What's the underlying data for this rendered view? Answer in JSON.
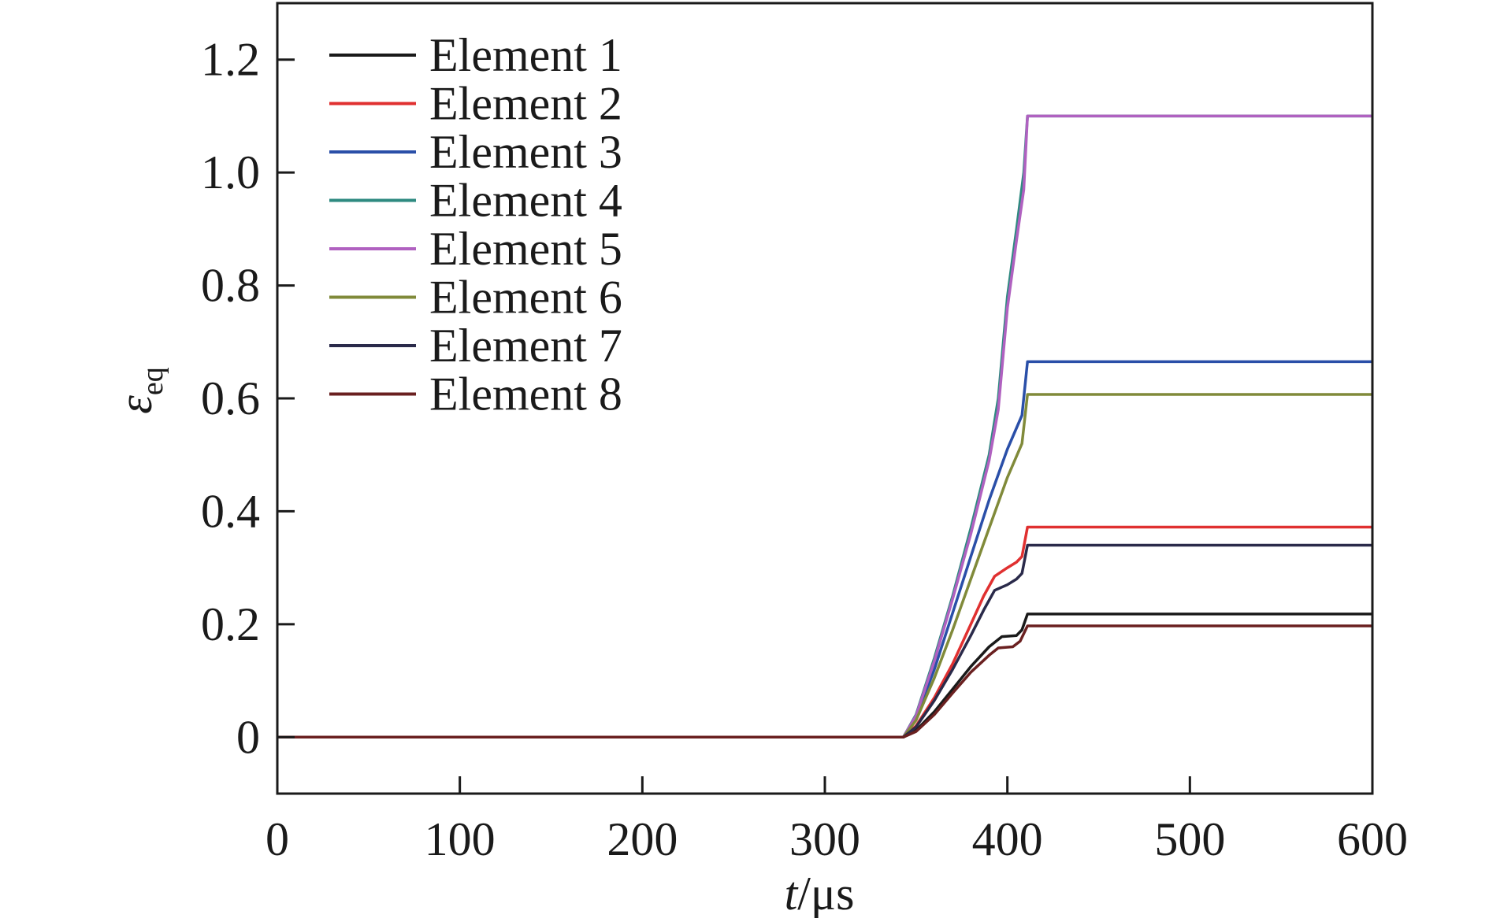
{
  "chart_data": {
    "type": "line",
    "xlabel": {
      "var": "t",
      "unit": "/μs"
    },
    "ylabel": {
      "var": "ε",
      "sub": "eq"
    },
    "xlim": [
      0,
      600
    ],
    "ylim": [
      -0.1,
      1.3
    ],
    "xticks": [
      0,
      100,
      200,
      300,
      400,
      500,
      600
    ],
    "xtick_labels": [
      "0",
      "100",
      "200",
      "300",
      "400",
      "500",
      "600"
    ],
    "yticks": [
      0,
      0.2,
      0.4,
      0.6,
      0.8,
      1.0,
      1.2
    ],
    "ytick_labels": [
      "0",
      "0.2",
      "0.4",
      "0.6",
      "0.8",
      "1.0",
      "1.2"
    ],
    "grid": false,
    "legend_position": "top-left",
    "series": [
      {
        "name": "Element 1",
        "color": "#1a1a1a",
        "x": [
          0,
          343,
          350,
          360,
          370,
          380,
          390,
          397,
          405,
          408,
          411,
          600
        ],
        "y": [
          0,
          0,
          0.012,
          0.045,
          0.085,
          0.125,
          0.16,
          0.178,
          0.18,
          0.19,
          0.218,
          0.218
        ]
      },
      {
        "name": "Element 2",
        "color": "#e03030",
        "x": [
          0,
          343,
          350,
          360,
          370,
          380,
          387,
          393,
          400,
          405,
          408,
          411,
          600
        ],
        "y": [
          0,
          0,
          0.02,
          0.07,
          0.13,
          0.2,
          0.25,
          0.285,
          0.3,
          0.31,
          0.32,
          0.372,
          0.372
        ]
      },
      {
        "name": "Element 3",
        "color": "#2a4fa8",
        "x": [
          0,
          343,
          350,
          360,
          370,
          380,
          390,
          400,
          408,
          411,
          600
        ],
        "y": [
          0,
          0,
          0.035,
          0.12,
          0.22,
          0.32,
          0.42,
          0.51,
          0.57,
          0.665,
          0.665
        ]
      },
      {
        "name": "Element 4",
        "color": "#2e8a80",
        "x": [
          0,
          343,
          350,
          360,
          370,
          380,
          390,
          395,
          400,
          405,
          409,
          411,
          600
        ],
        "y": [
          0,
          0,
          0.04,
          0.14,
          0.25,
          0.37,
          0.5,
          0.6,
          0.78,
          0.9,
          1.0,
          1.1,
          1.1
        ]
      },
      {
        "name": "Element 5",
        "color": "#b061c0",
        "x": [
          0,
          343,
          350,
          360,
          370,
          380,
          390,
          395,
          400,
          405,
          409,
          411,
          600
        ],
        "y": [
          0,
          0,
          0.038,
          0.135,
          0.245,
          0.36,
          0.49,
          0.58,
          0.76,
          0.88,
          0.97,
          1.1,
          1.1
        ]
      },
      {
        "name": "Element 6",
        "color": "#808a3a",
        "x": [
          0,
          343,
          350,
          360,
          370,
          380,
          390,
          400,
          408,
          411,
          600
        ],
        "y": [
          0,
          0,
          0.03,
          0.105,
          0.19,
          0.28,
          0.37,
          0.46,
          0.52,
          0.607,
          0.607
        ]
      },
      {
        "name": "Element 7",
        "color": "#2a2a4a",
        "x": [
          0,
          343,
          350,
          360,
          370,
          380,
          387,
          393,
          400,
          405,
          408,
          411,
          600
        ],
        "y": [
          0,
          0,
          0.018,
          0.065,
          0.12,
          0.18,
          0.225,
          0.26,
          0.27,
          0.28,
          0.29,
          0.34,
          0.34
        ]
      },
      {
        "name": "Element 8",
        "color": "#6a2020",
        "x": [
          0,
          343,
          350,
          360,
          370,
          380,
          390,
          395,
          403,
          407,
          411,
          600
        ],
        "y": [
          0,
          0,
          0.01,
          0.04,
          0.078,
          0.115,
          0.145,
          0.158,
          0.16,
          0.17,
          0.197,
          0.197
        ]
      }
    ]
  }
}
